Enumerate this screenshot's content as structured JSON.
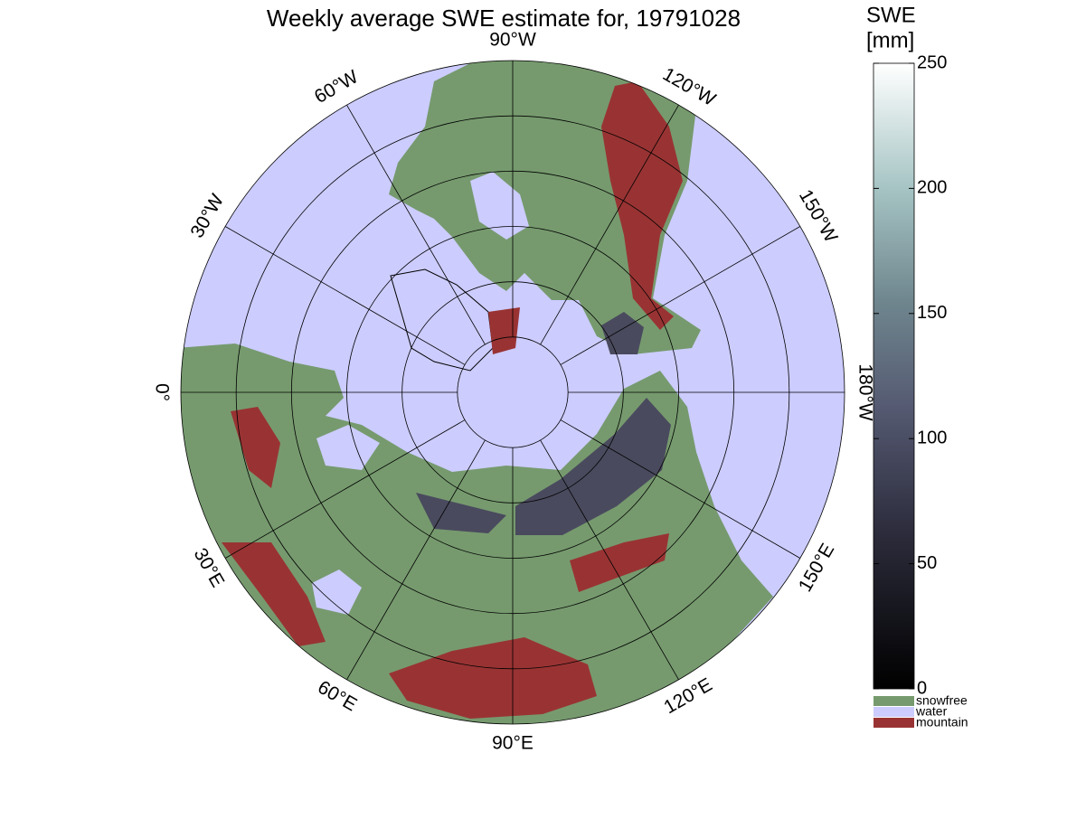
{
  "title": "Weekly average SWE estimate for, 19791028",
  "map": {
    "longitude_labels": [
      "90°W",
      "120°W",
      "150°W",
      "180°W",
      "150°E",
      "120°E",
      "90°E",
      "60°E",
      "30°E",
      "0°",
      "30°W",
      "60°W"
    ]
  },
  "colorbar": {
    "label": [
      "SWE",
      "[mm]"
    ],
    "lim": [
      0,
      250
    ],
    "ticks": [
      0,
      50,
      100,
      150,
      200,
      250
    ]
  },
  "legend": [
    {
      "name": "snowfree",
      "color": "#769a6e"
    },
    {
      "name": "water",
      "color": "#ccccff"
    },
    {
      "name": "mountain",
      "color": "#993333"
    }
  ]
}
